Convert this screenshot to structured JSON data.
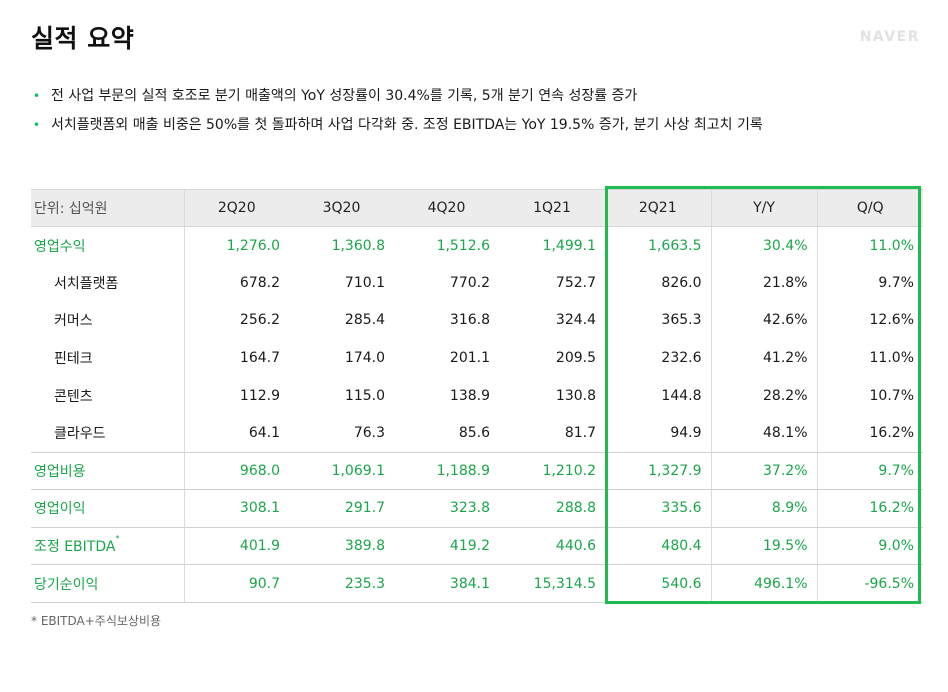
{
  "title": "실적 요약",
  "logo_text": "NAVER",
  "colors": {
    "accent_green": "#03c75a",
    "value_green": "#1aa64a",
    "highlight_border": "#1fbb50",
    "header_bg": "#ececec"
  },
  "bullets": [
    "전 사업 부문의 실적 호조로 분기 매출액의 YoY 성장률이 30.4%를 기록, 5개 분기 연속 성장률 증가",
    "서치플랫폼외 매출 비중은 50%를 첫 돌파하며 사업 다각화 중. 조정 EBITDA는 YoY 19.5% 증가, 분기 사상 최고치 기록"
  ],
  "table": {
    "unit_label": "단위: 십억원",
    "columns": [
      "2Q20",
      "3Q20",
      "4Q20",
      "1Q21",
      "2Q21",
      "Y/Y",
      "Q/Q"
    ],
    "rows": [
      {
        "label": "영업수익",
        "values": [
          "1,276.0",
          "1,360.8",
          "1,512.6",
          "1,499.1",
          "1,663.5",
          "30.4%",
          "11.0%"
        ]
      },
      {
        "label": "서치플랫폼",
        "values": [
          "678.2",
          "710.1",
          "770.2",
          "752.7",
          "826.0",
          "21.8%",
          "9.7%"
        ]
      },
      {
        "label": "커머스",
        "values": [
          "256.2",
          "285.4",
          "316.8",
          "324.4",
          "365.3",
          "42.6%",
          "12.6%"
        ]
      },
      {
        "label": "핀테크",
        "values": [
          "164.7",
          "174.0",
          "201.1",
          "209.5",
          "232.6",
          "41.2%",
          "11.0%"
        ]
      },
      {
        "label": "콘텐츠",
        "values": [
          "112.9",
          "115.0",
          "138.9",
          "130.8",
          "144.8",
          "28.2%",
          "10.7%"
        ]
      },
      {
        "label": "클라우드",
        "values": [
          "64.1",
          "76.3",
          "85.6",
          "81.7",
          "94.9",
          "48.1%",
          "16.2%"
        ]
      },
      {
        "label": "영업비용",
        "values": [
          "968.0",
          "1,069.1",
          "1,188.9",
          "1,210.2",
          "1,327.9",
          "37.2%",
          "9.7%"
        ]
      },
      {
        "label": "영업이익",
        "values": [
          "308.1",
          "291.7",
          "323.8",
          "288.8",
          "335.6",
          "8.9%",
          "16.2%"
        ]
      },
      {
        "label": "조정 EBITDA",
        "label_mark": "*",
        "values": [
          "401.9",
          "389.8",
          "419.2",
          "440.6",
          "480.4",
          "19.5%",
          "9.0%"
        ]
      },
      {
        "label": "당기순이익",
        "values": [
          "90.7",
          "235.3",
          "384.1",
          "15,314.5",
          "540.6",
          "496.1%",
          "-96.5%"
        ]
      }
    ]
  },
  "footnote": "* EBITDA+주식보상비용"
}
